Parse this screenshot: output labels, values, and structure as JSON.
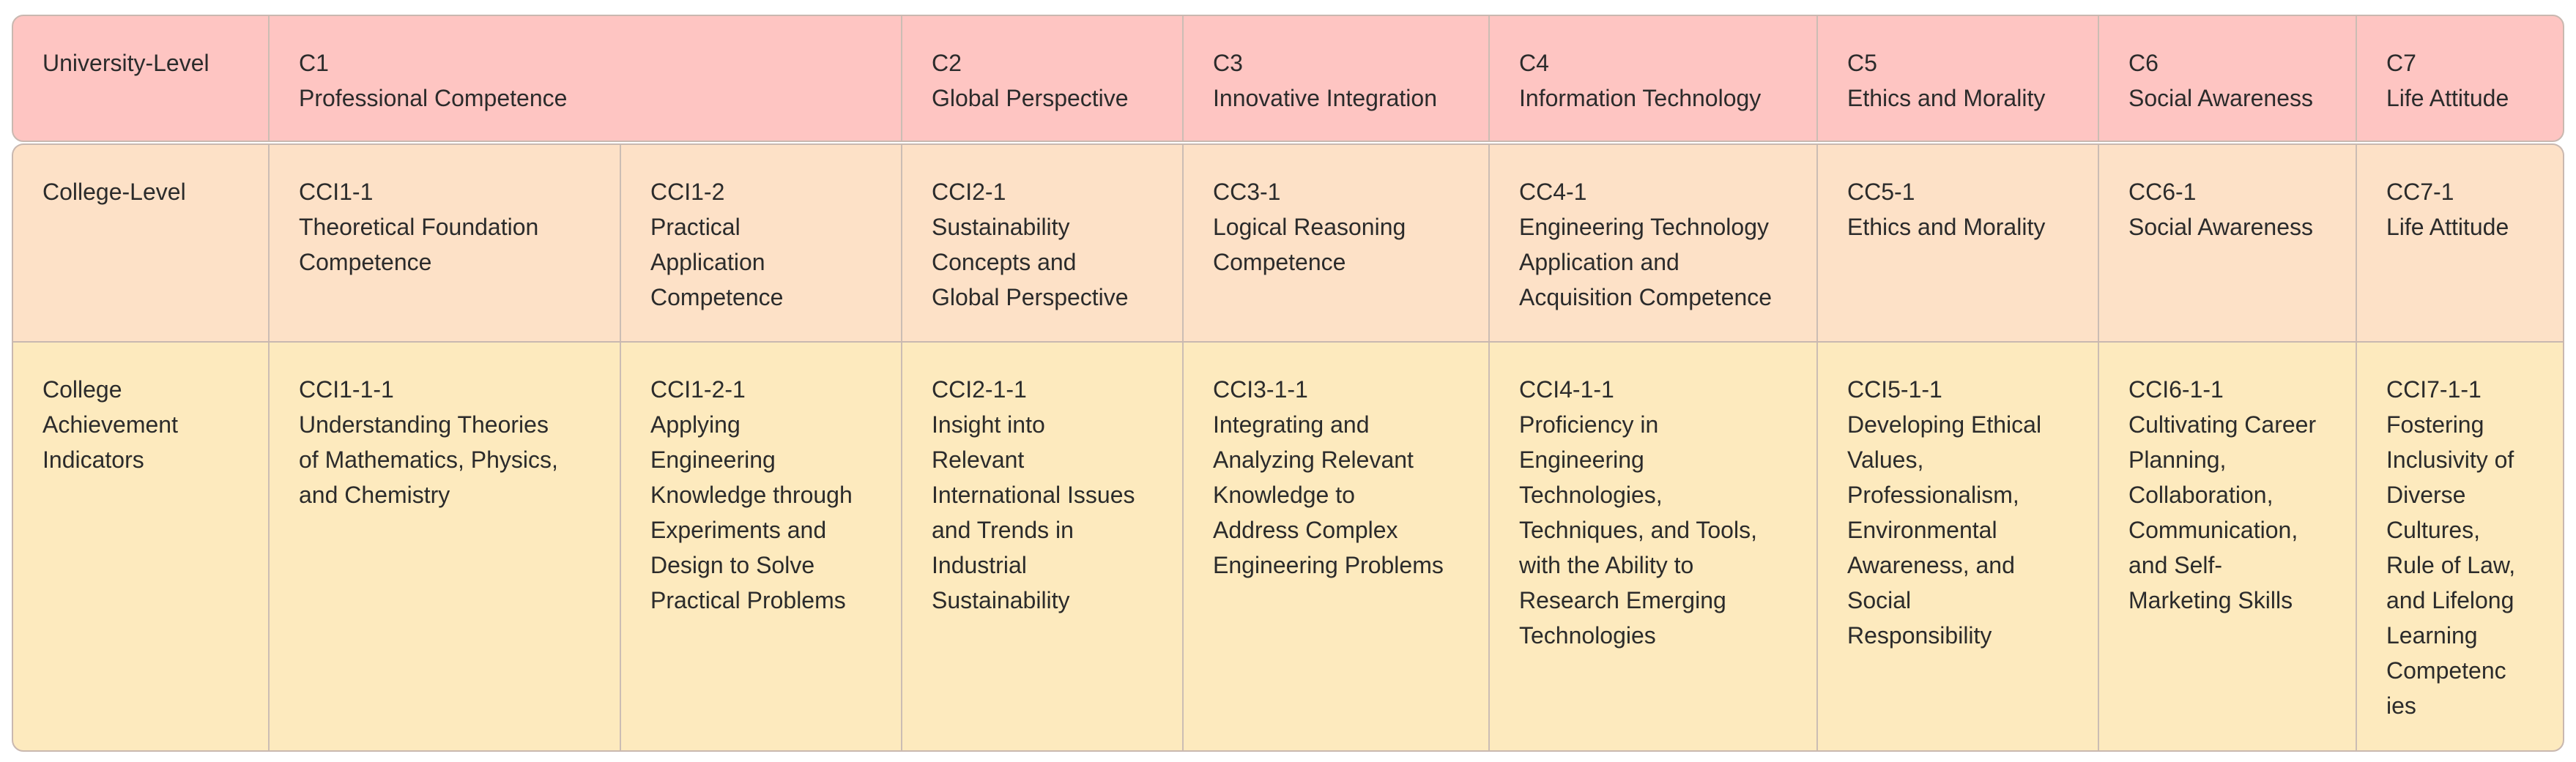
{
  "university_row": {
    "label": "University-Level",
    "c1": "C1\nProfessional Competence",
    "c2": "C2\nGlobal Perspective",
    "c3": "C3\nInnovative Integration",
    "c4": "C4\nInformation Technology",
    "c5": "C5\nEthics and Morality",
    "c6": "C6\nSocial Awareness",
    "c7": "C7\nLife Attitude"
  },
  "college_row": {
    "label": "College-Level",
    "cci1_1": "CCI1-1\nTheoretical Foundation\nCompetence",
    "cci1_2": "CCI1-2\nPractical\nApplication\nCompetence",
    "cc2_1": "CCI2-1\nSustainability\nConcepts and\nGlobal Perspective",
    "cc3_1": "CC3-1\nLogical Reasoning\nCompetence",
    "cc4_1": "CC4-1\nEngineering Technology\nApplication and\nAcquisition Competence",
    "cc5_1": "CC5-1\nEthics and Morality",
    "cc6_1": "CC6-1\nSocial Awareness",
    "cc7_1": "CC7-1\nLife Attitude"
  },
  "achievement_row": {
    "label": "College\nAchievement\nIndicators",
    "cci1_1_1": "CCI1-1-1\nUnderstanding Theories\nof Mathematics, Physics,\nand Chemistry",
    "cci1_2_1": "CCI1-2-1\nApplying\nEngineering\nKnowledge through\nExperiments and\nDesign to Solve\nPractical Problems",
    "cci2_1_1": "CCI2-1-1\nInsight into\nRelevant\nInternational Issues\nand Trends in\nIndustrial\nSustainability",
    "cci3_1_1": "CCI3-1-1\nIntegrating and\nAnalyzing Relevant\nKnowledge to\nAddress Complex\nEngineering Problems",
    "cci4_1_1": "CCI4-1-1\nProficiency in\nEngineering\nTechnologies,\nTechniques, and Tools,\nwith the Ability to\nResearch Emerging\nTechnologies",
    "cci5_1_1": " CCI5-1-1\nDeveloping Ethical\nValues,\nProfessionalism,\nEnvironmental\nAwareness, and\nSocial\nResponsibility",
    "cci6_1_1": "CCI6-1-1\nCultivating Career\nPlanning,\nCollaboration,\nCommunication,\nand Self-\nMarketing Skills",
    "cci7_1_1": "CCI7-1-1\nFostering\nInclusivity of\nDiverse\nCultures,\nRule of Law,\nand Lifelong\nLearning\nCompetenc\nies"
  }
}
